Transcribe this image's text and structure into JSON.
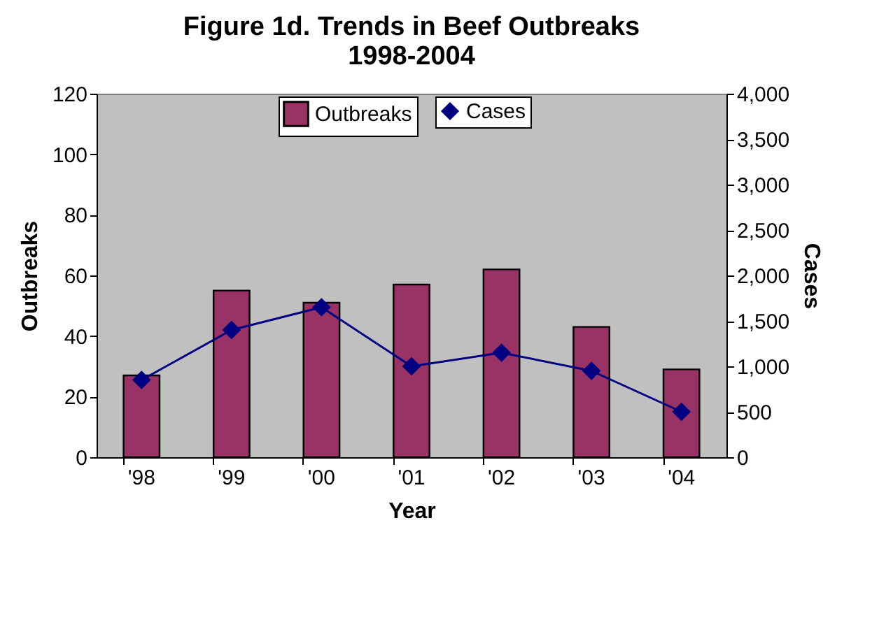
{
  "chart_data": {
    "type": "bar",
    "title": "Figure 1d. Trends in Beef Outbreaks\n1998-2004",
    "xlabel": "Year",
    "ylabel": "Outbreaks",
    "y2label": "Cases",
    "categories": [
      "'98",
      "'99",
      "'00",
      "'01",
      "'02",
      "'03",
      "'04"
    ],
    "series": [
      {
        "name": "Outbreaks",
        "color": "#993366",
        "values": [
          27,
          55,
          51,
          57,
          62,
          43,
          29
        ]
      },
      {
        "name": "Cases",
        "type": "line",
        "axis": "y2",
        "color": "#000080",
        "marker": "diamond",
        "line_style": "solid",
        "values": [
          850,
          1400,
          1650,
          1000,
          1150,
          950,
          500
        ]
      }
    ],
    "ylim": [
      0,
      120
    ],
    "yticks": [
      0,
      20,
      40,
      60,
      80,
      100,
      120
    ],
    "y2lim": [
      0,
      4000
    ],
    "y2ticks": [
      0,
      {
        "value": 500,
        "label": "500"
      },
      {
        "value": 1000,
        "label": "1,000"
      },
      {
        "value": 1500,
        "label": "1,500"
      },
      {
        "value": 2000,
        "label": "2,000"
      },
      {
        "value": 2500,
        "label": "2,500"
      },
      {
        "value": 3000,
        "label": "3,000"
      },
      {
        "value": 3500,
        "label": "3,500"
      },
      {
        "value": 4000,
        "label": "4,000"
      }
    ],
    "grid": false,
    "legend": "top"
  }
}
